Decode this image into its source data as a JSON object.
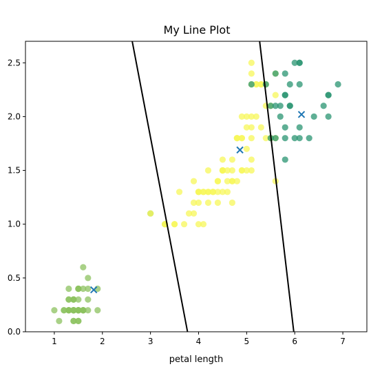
{
  "chart_data": {
    "type": "scatter",
    "title": "My Line Plot",
    "xlabel": "petal length",
    "ylabel": "",
    "xlim": [
      0.4,
      7.5
    ],
    "ylim": [
      0.0,
      2.7
    ],
    "xticks": [
      1,
      2,
      3,
      4,
      5,
      6,
      7
    ],
    "yticks": [
      0.0,
      0.5,
      1.0,
      1.5,
      2.0,
      2.5
    ],
    "grid": false,
    "legend": "none",
    "colors": {
      "cluster_a": "#8cc25f",
      "cluster_b": "#f7f75a",
      "cluster_c": "#2a9472",
      "centroid": "#1f77b4",
      "boundary": "#000000"
    },
    "series": [
      {
        "color_key": "cluster_a",
        "points": [
          [
            1.4,
            0.2
          ],
          [
            1.4,
            0.2
          ],
          [
            1.3,
            0.2
          ],
          [
            1.5,
            0.2
          ],
          [
            1.4,
            0.2
          ],
          [
            1.7,
            0.4
          ],
          [
            1.4,
            0.3
          ],
          [
            1.5,
            0.2
          ],
          [
            1.4,
            0.2
          ],
          [
            1.5,
            0.1
          ],
          [
            1.5,
            0.2
          ],
          [
            1.6,
            0.2
          ],
          [
            1.4,
            0.1
          ],
          [
            1.1,
            0.1
          ],
          [
            1.2,
            0.2
          ],
          [
            1.5,
            0.4
          ],
          [
            1.3,
            0.4
          ],
          [
            1.4,
            0.3
          ],
          [
            1.7,
            0.3
          ],
          [
            1.5,
            0.3
          ],
          [
            1.7,
            0.2
          ],
          [
            1.5,
            0.4
          ],
          [
            1.0,
            0.2
          ],
          [
            1.7,
            0.5
          ],
          [
            1.9,
            0.2
          ],
          [
            1.6,
            0.2
          ],
          [
            1.6,
            0.4
          ],
          [
            1.5,
            0.2
          ],
          [
            1.4,
            0.2
          ],
          [
            1.6,
            0.2
          ],
          [
            1.6,
            0.2
          ],
          [
            1.5,
            0.4
          ],
          [
            1.5,
            0.1
          ],
          [
            1.4,
            0.2
          ],
          [
            1.5,
            0.2
          ],
          [
            1.2,
            0.2
          ],
          [
            1.3,
            0.2
          ],
          [
            1.4,
            0.1
          ],
          [
            1.3,
            0.2
          ],
          [
            1.5,
            0.2
          ],
          [
            1.3,
            0.3
          ],
          [
            1.3,
            0.3
          ],
          [
            1.3,
            0.2
          ],
          [
            1.6,
            0.6
          ],
          [
            1.9,
            0.4
          ],
          [
            1.4,
            0.3
          ],
          [
            1.6,
            0.2
          ],
          [
            1.4,
            0.2
          ],
          [
            1.5,
            0.2
          ],
          [
            1.4,
            0.2
          ],
          [
            3.0,
            1.1
          ],
          [
            3.3,
            1.0
          ]
        ]
      },
      {
        "color_key": "cluster_b",
        "points": [
          [
            4.7,
            1.4
          ],
          [
            4.5,
            1.5
          ],
          [
            4.9,
            1.5
          ],
          [
            4.0,
            1.3
          ],
          [
            4.6,
            1.5
          ],
          [
            4.5,
            1.3
          ],
          [
            4.7,
            1.6
          ],
          [
            3.3,
            1.0
          ],
          [
            4.6,
            1.3
          ],
          [
            3.9,
            1.4
          ],
          [
            3.5,
            1.0
          ],
          [
            4.2,
            1.5
          ],
          [
            4.0,
            1.0
          ],
          [
            4.7,
            1.4
          ],
          [
            3.6,
            1.3
          ],
          [
            4.4,
            1.4
          ],
          [
            4.5,
            1.5
          ],
          [
            4.1,
            1.0
          ],
          [
            4.5,
            1.5
          ],
          [
            3.9,
            1.1
          ],
          [
            4.8,
            1.8
          ],
          [
            4.0,
            1.3
          ],
          [
            4.9,
            1.5
          ],
          [
            4.7,
            1.2
          ],
          [
            4.3,
            1.3
          ],
          [
            4.4,
            1.4
          ],
          [
            4.8,
            1.4
          ],
          [
            5.0,
            1.7
          ],
          [
            4.5,
            1.5
          ],
          [
            3.5,
            1.0
          ],
          [
            3.8,
            1.1
          ],
          [
            3.7,
            1.0
          ],
          [
            3.9,
            1.2
          ],
          [
            5.1,
            1.6
          ],
          [
            4.5,
            1.5
          ],
          [
            4.5,
            1.6
          ],
          [
            4.7,
            1.5
          ],
          [
            4.4,
            1.3
          ],
          [
            4.1,
            1.3
          ],
          [
            4.0,
            1.3
          ],
          [
            4.4,
            1.2
          ],
          [
            4.6,
            1.4
          ],
          [
            4.0,
            1.2
          ],
          [
            3.3,
            1.0
          ],
          [
            4.2,
            1.3
          ],
          [
            4.2,
            1.2
          ],
          [
            4.2,
            1.3
          ],
          [
            4.3,
            1.3
          ],
          [
            3.0,
            1.1
          ],
          [
            4.1,
            1.3
          ],
          [
            5.1,
            2.5
          ],
          [
            5.1,
            2.0
          ],
          [
            5.3,
            2.3
          ],
          [
            5.0,
            2.0
          ],
          [
            5.1,
            2.4
          ],
          [
            5.3,
            2.3
          ],
          [
            5.5,
            2.1
          ],
          [
            5.0,
            1.5
          ],
          [
            4.9,
            2.0
          ],
          [
            5.2,
            2.3
          ],
          [
            5.1,
            1.8
          ],
          [
            4.9,
            1.8
          ],
          [
            5.1,
            1.9
          ],
          [
            4.8,
            1.8
          ],
          [
            5.6,
            1.4
          ],
          [
            5.1,
            1.5
          ],
          [
            5.5,
            1.8
          ],
          [
            4.8,
            1.8
          ],
          [
            5.4,
            2.1
          ],
          [
            5.4,
            2.3
          ],
          [
            5.1,
            2.3
          ],
          [
            5.6,
            2.4
          ],
          [
            5.2,
            2.0
          ],
          [
            5.0,
            1.9
          ],
          [
            5.2,
            2.3
          ],
          [
            5.4,
            1.8
          ],
          [
            5.6,
            2.2
          ],
          [
            5.5,
            1.8
          ],
          [
            5.3,
            1.9
          ],
          [
            4.9,
            1.8
          ],
          [
            5.6,
            1.8
          ]
        ]
      },
      {
        "color_key": "cluster_c",
        "points": [
          [
            6.0,
            2.5
          ],
          [
            5.9,
            2.1
          ],
          [
            5.6,
            1.8
          ],
          [
            5.8,
            2.2
          ],
          [
            6.6,
            2.1
          ],
          [
            6.3,
            1.8
          ],
          [
            5.8,
            1.8
          ],
          [
            6.1,
            2.5
          ],
          [
            5.9,
            2.3
          ],
          [
            5.7,
            2.1
          ],
          [
            5.5,
            2.1
          ],
          [
            5.8,
            2.4
          ],
          [
            6.7,
            2.2
          ],
          [
            6.9,
            2.3
          ],
          [
            5.7,
            2.0
          ],
          [
            6.7,
            2.0
          ],
          [
            6.0,
            1.8
          ],
          [
            6.1,
            2.3
          ],
          [
            6.4,
            2.0
          ],
          [
            6.1,
            1.9
          ],
          [
            6.7,
            2.2
          ],
          [
            6.1,
            1.8
          ],
          [
            5.6,
            2.4
          ],
          [
            5.5,
            1.8
          ],
          [
            5.4,
            2.3
          ],
          [
            5.1,
            2.3
          ],
          [
            5.9,
            2.1
          ],
          [
            5.8,
            1.6
          ],
          [
            5.6,
            2.1
          ],
          [
            5.8,
            1.9
          ],
          [
            6.1,
            2.5
          ],
          [
            5.8,
            2.2
          ]
        ]
      }
    ],
    "centroids": [
      [
        1.82,
        0.39
      ],
      [
        4.86,
        1.69
      ],
      [
        6.14,
        2.02
      ]
    ],
    "boundary_lines": [
      {
        "x": [
          2.62,
          3.77
        ],
        "y": [
          2.7,
          0.0
        ]
      },
      {
        "x": [
          5.27,
          5.98
        ],
        "y": [
          2.7,
          0.0
        ]
      }
    ]
  }
}
